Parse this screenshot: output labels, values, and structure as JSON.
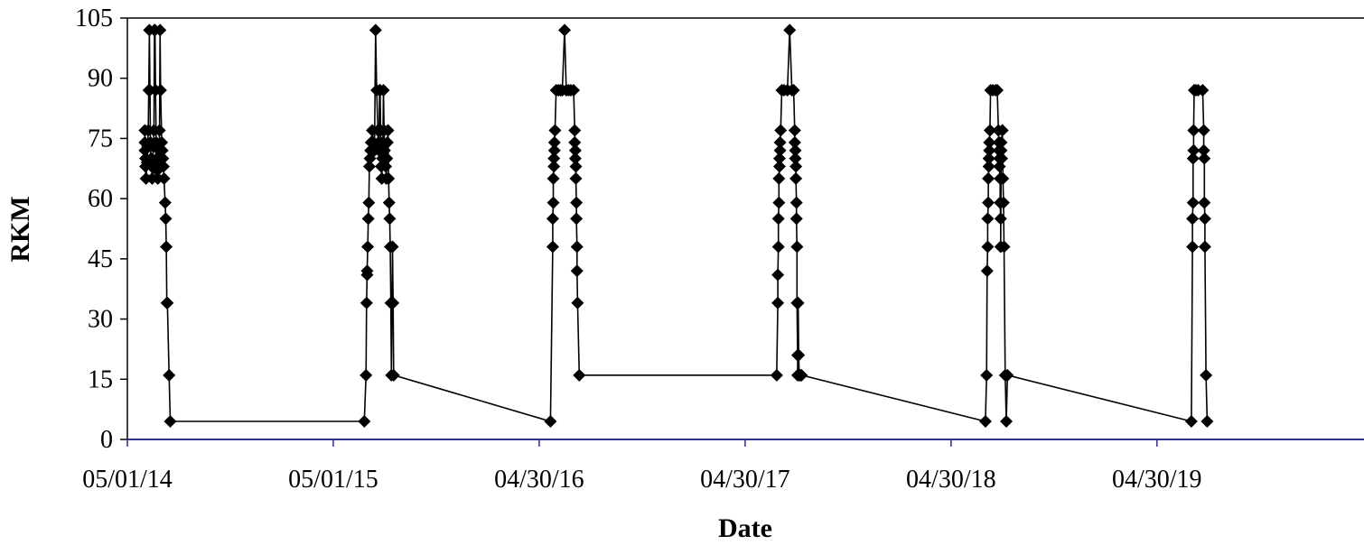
{
  "chart_data": {
    "type": "line",
    "title": "",
    "xlabel": "Date",
    "ylabel": "RKM",
    "ylim": [
      0,
      105
    ],
    "yticks": [
      0,
      15,
      30,
      45,
      60,
      75,
      90,
      105
    ],
    "xlim": [
      "2014-05-01",
      "2020-05-01"
    ],
    "xticks": [
      {
        "date": "2014-05-01",
        "label": "05/01/14"
      },
      {
        "date": "2015-05-01",
        "label": "05/01/15"
      },
      {
        "date": "2016-04-30",
        "label": "04/30/16"
      },
      {
        "date": "2017-04-30",
        "label": "04/30/17"
      },
      {
        "date": "2018-04-30",
        "label": "04/30/18"
      },
      {
        "date": "2019-04-30",
        "label": "04/30/19"
      }
    ],
    "grid": false,
    "legend": "none",
    "series": [
      {
        "points": [
          [
            "2014-06-01",
            77
          ],
          [
            "2014-06-01",
            74
          ],
          [
            "2014-06-01",
            72
          ],
          [
            "2014-06-02",
            70
          ],
          [
            "2014-06-02",
            68
          ],
          [
            "2014-06-03",
            65
          ],
          [
            "2014-06-05",
            69
          ],
          [
            "2014-06-06",
            73
          ],
          [
            "2014-06-07",
            77
          ],
          [
            "2014-06-08",
            87
          ],
          [
            "2014-06-09",
            102
          ],
          [
            "2014-06-10",
            87
          ],
          [
            "2014-06-11",
            74
          ],
          [
            "2014-06-12",
            70
          ],
          [
            "2014-06-13",
            68
          ],
          [
            "2014-06-14",
            65
          ],
          [
            "2014-06-15",
            69
          ],
          [
            "2014-06-16",
            73
          ],
          [
            "2014-06-17",
            77
          ],
          [
            "2014-06-18",
            102
          ],
          [
            "2014-06-19",
            102
          ],
          [
            "2014-06-20",
            87
          ],
          [
            "2014-06-21",
            74
          ],
          [
            "2014-06-22",
            70
          ],
          [
            "2014-06-23",
            67
          ],
          [
            "2014-06-24",
            65
          ],
          [
            "2014-06-25",
            69
          ],
          [
            "2014-06-26",
            72
          ],
          [
            "2014-06-27",
            77
          ],
          [
            "2014-06-28",
            102
          ],
          [
            "2014-06-29",
            87
          ],
          [
            "2014-07-01",
            74
          ],
          [
            "2014-07-02",
            72
          ],
          [
            "2014-07-03",
            70
          ],
          [
            "2014-07-04",
            68
          ],
          [
            "2014-07-05",
            65
          ],
          [
            "2014-07-07",
            59
          ],
          [
            "2014-07-08",
            55
          ],
          [
            "2014-07-09",
            48
          ],
          [
            "2014-07-10",
            34
          ],
          [
            "2014-07-11",
            34
          ],
          [
            "2014-07-14",
            16
          ],
          [
            "2014-07-16",
            4.5
          ],
          [
            "2015-06-25",
            4.5
          ],
          [
            "2015-06-28",
            16
          ],
          [
            "2015-06-29",
            34
          ],
          [
            "2015-06-30",
            41
          ],
          [
            "2015-06-30",
            42
          ],
          [
            "2015-07-01",
            48
          ],
          [
            "2015-07-02",
            55
          ],
          [
            "2015-07-03",
            59
          ],
          [
            "2015-07-04",
            68
          ],
          [
            "2015-07-05",
            70
          ],
          [
            "2015-07-06",
            72
          ],
          [
            "2015-07-07",
            74
          ],
          [
            "2015-07-09",
            77
          ],
          [
            "2015-07-11",
            74
          ],
          [
            "2015-07-13",
            72
          ],
          [
            "2015-07-15",
            102
          ],
          [
            "2015-07-17",
            87
          ],
          [
            "2015-07-19",
            77
          ],
          [
            "2015-07-20",
            74
          ],
          [
            "2015-07-21",
            72
          ],
          [
            "2015-07-22",
            87
          ],
          [
            "2015-07-23",
            87
          ],
          [
            "2015-07-24",
            77
          ],
          [
            "2015-07-25",
            68
          ],
          [
            "2015-07-26",
            65
          ],
          [
            "2015-07-27",
            70
          ],
          [
            "2015-07-28",
            74
          ],
          [
            "2015-07-29",
            87
          ],
          [
            "2015-07-30",
            77
          ],
          [
            "2015-07-31",
            72
          ],
          [
            "2015-08-01",
            70
          ],
          [
            "2015-08-02",
            68
          ],
          [
            "2015-08-03",
            65
          ],
          [
            "2015-08-04",
            70
          ],
          [
            "2015-08-05",
            74
          ],
          [
            "2015-08-06",
            77
          ],
          [
            "2015-08-07",
            65
          ],
          [
            "2015-08-08",
            59
          ],
          [
            "2015-08-09",
            55
          ],
          [
            "2015-08-10",
            48
          ],
          [
            "2015-08-11",
            34
          ],
          [
            "2015-08-12",
            16
          ],
          [
            "2015-08-14",
            48
          ],
          [
            "2015-08-15",
            34
          ],
          [
            "2015-08-16",
            16
          ],
          [
            "2016-05-20",
            4.5
          ],
          [
            "2016-05-24",
            48
          ],
          [
            "2016-05-24",
            55
          ],
          [
            "2016-05-25",
            59
          ],
          [
            "2016-05-25",
            65
          ],
          [
            "2016-05-26",
            68
          ],
          [
            "2016-05-26",
            70
          ],
          [
            "2016-05-27",
            72
          ],
          [
            "2016-05-27",
            74
          ],
          [
            "2016-05-28",
            77
          ],
          [
            "2016-05-30",
            87
          ],
          [
            "2016-06-03",
            87
          ],
          [
            "2016-06-07",
            87
          ],
          [
            "2016-06-10",
            87
          ],
          [
            "2016-06-14",
            102
          ],
          [
            "2016-06-17",
            87
          ],
          [
            "2016-06-21",
            87
          ],
          [
            "2016-06-25",
            87
          ],
          [
            "2016-06-30",
            87
          ],
          [
            "2016-07-02",
            77
          ],
          [
            "2016-07-02",
            74
          ],
          [
            "2016-07-03",
            72
          ],
          [
            "2016-07-03",
            70
          ],
          [
            "2016-07-04",
            68
          ],
          [
            "2016-07-04",
            65
          ],
          [
            "2016-07-05",
            59
          ],
          [
            "2016-07-05",
            55
          ],
          [
            "2016-07-06",
            48
          ],
          [
            "2016-07-06",
            42
          ],
          [
            "2016-07-07",
            34
          ],
          [
            "2016-07-10",
            16
          ],
          [
            "2017-06-25",
            16
          ],
          [
            "2017-06-27",
            34
          ],
          [
            "2017-06-27",
            41
          ],
          [
            "2017-06-28",
            48
          ],
          [
            "2017-06-28",
            55
          ],
          [
            "2017-06-29",
            59
          ],
          [
            "2017-06-29",
            65
          ],
          [
            "2017-06-30",
            68
          ],
          [
            "2017-06-30",
            70
          ],
          [
            "2017-07-01",
            72
          ],
          [
            "2017-07-01",
            74
          ],
          [
            "2017-07-02",
            77
          ],
          [
            "2017-07-04",
            87
          ],
          [
            "2017-07-08",
            87
          ],
          [
            "2017-07-14",
            87
          ],
          [
            "2017-07-18",
            102
          ],
          [
            "2017-07-22",
            87
          ],
          [
            "2017-07-25",
            87
          ],
          [
            "2017-07-27",
            77
          ],
          [
            "2017-07-27",
            74
          ],
          [
            "2017-07-28",
            72
          ],
          [
            "2017-07-28",
            70
          ],
          [
            "2017-07-29",
            68
          ],
          [
            "2017-07-29",
            65
          ],
          [
            "2017-07-30",
            59
          ],
          [
            "2017-07-30",
            55
          ],
          [
            "2017-07-31",
            48
          ],
          [
            "2017-07-31",
            34
          ],
          [
            "2017-08-01",
            21
          ],
          [
            "2017-08-01",
            16
          ],
          [
            "2017-08-02",
            34
          ],
          [
            "2017-08-03",
            21
          ],
          [
            "2017-08-04",
            16
          ],
          [
            "2017-08-06",
            16
          ],
          [
            "2017-08-08",
            16
          ],
          [
            "2018-06-30",
            4.5
          ],
          [
            "2018-07-02",
            16
          ],
          [
            "2018-07-03",
            42
          ],
          [
            "2018-07-04",
            48
          ],
          [
            "2018-07-04",
            55
          ],
          [
            "2018-07-05",
            59
          ],
          [
            "2018-07-05",
            65
          ],
          [
            "2018-07-06",
            68
          ],
          [
            "2018-07-06",
            70
          ],
          [
            "2018-07-07",
            72
          ],
          [
            "2018-07-07",
            74
          ],
          [
            "2018-07-08",
            77
          ],
          [
            "2018-07-09",
            87
          ],
          [
            "2018-07-13",
            87
          ],
          [
            "2018-07-18",
            87
          ],
          [
            "2018-07-21",
            87
          ],
          [
            "2018-07-23",
            77
          ],
          [
            "2018-07-24",
            74
          ],
          [
            "2018-07-24",
            72
          ],
          [
            "2018-07-25",
            70
          ],
          [
            "2018-07-25",
            68
          ],
          [
            "2018-07-26",
            65
          ],
          [
            "2018-07-26",
            59
          ],
          [
            "2018-07-27",
            55
          ],
          [
            "2018-07-27",
            48
          ],
          [
            "2018-07-28",
            74
          ],
          [
            "2018-07-28",
            72
          ],
          [
            "2018-07-29",
            70
          ],
          [
            "2018-07-30",
            77
          ],
          [
            "2018-07-31",
            65
          ],
          [
            "2018-08-01",
            59
          ],
          [
            "2018-08-02",
            48
          ],
          [
            "2018-08-04",
            16
          ],
          [
            "2018-08-06",
            4.5
          ],
          [
            "2018-08-08",
            16
          ],
          [
            "2019-06-30",
            4.5
          ],
          [
            "2019-07-02",
            48
          ],
          [
            "2019-07-02",
            55
          ],
          [
            "2019-07-03",
            59
          ],
          [
            "2019-07-03",
            70
          ],
          [
            "2019-07-04",
            72
          ],
          [
            "2019-07-04",
            77
          ],
          [
            "2019-07-05",
            87
          ],
          [
            "2019-07-08",
            87
          ],
          [
            "2019-07-12",
            87
          ],
          [
            "2019-07-20",
            87
          ],
          [
            "2019-07-22",
            77
          ],
          [
            "2019-07-22",
            72
          ],
          [
            "2019-07-23",
            70
          ],
          [
            "2019-07-23",
            59
          ],
          [
            "2019-07-24",
            55
          ],
          [
            "2019-07-24",
            48
          ],
          [
            "2019-07-26",
            16
          ],
          [
            "2019-07-28",
            4.5
          ]
        ]
      }
    ]
  },
  "colors": {
    "line": "#000000",
    "marker": "#000000",
    "x_axis": "#2e2e8b",
    "frame": "#000000"
  }
}
